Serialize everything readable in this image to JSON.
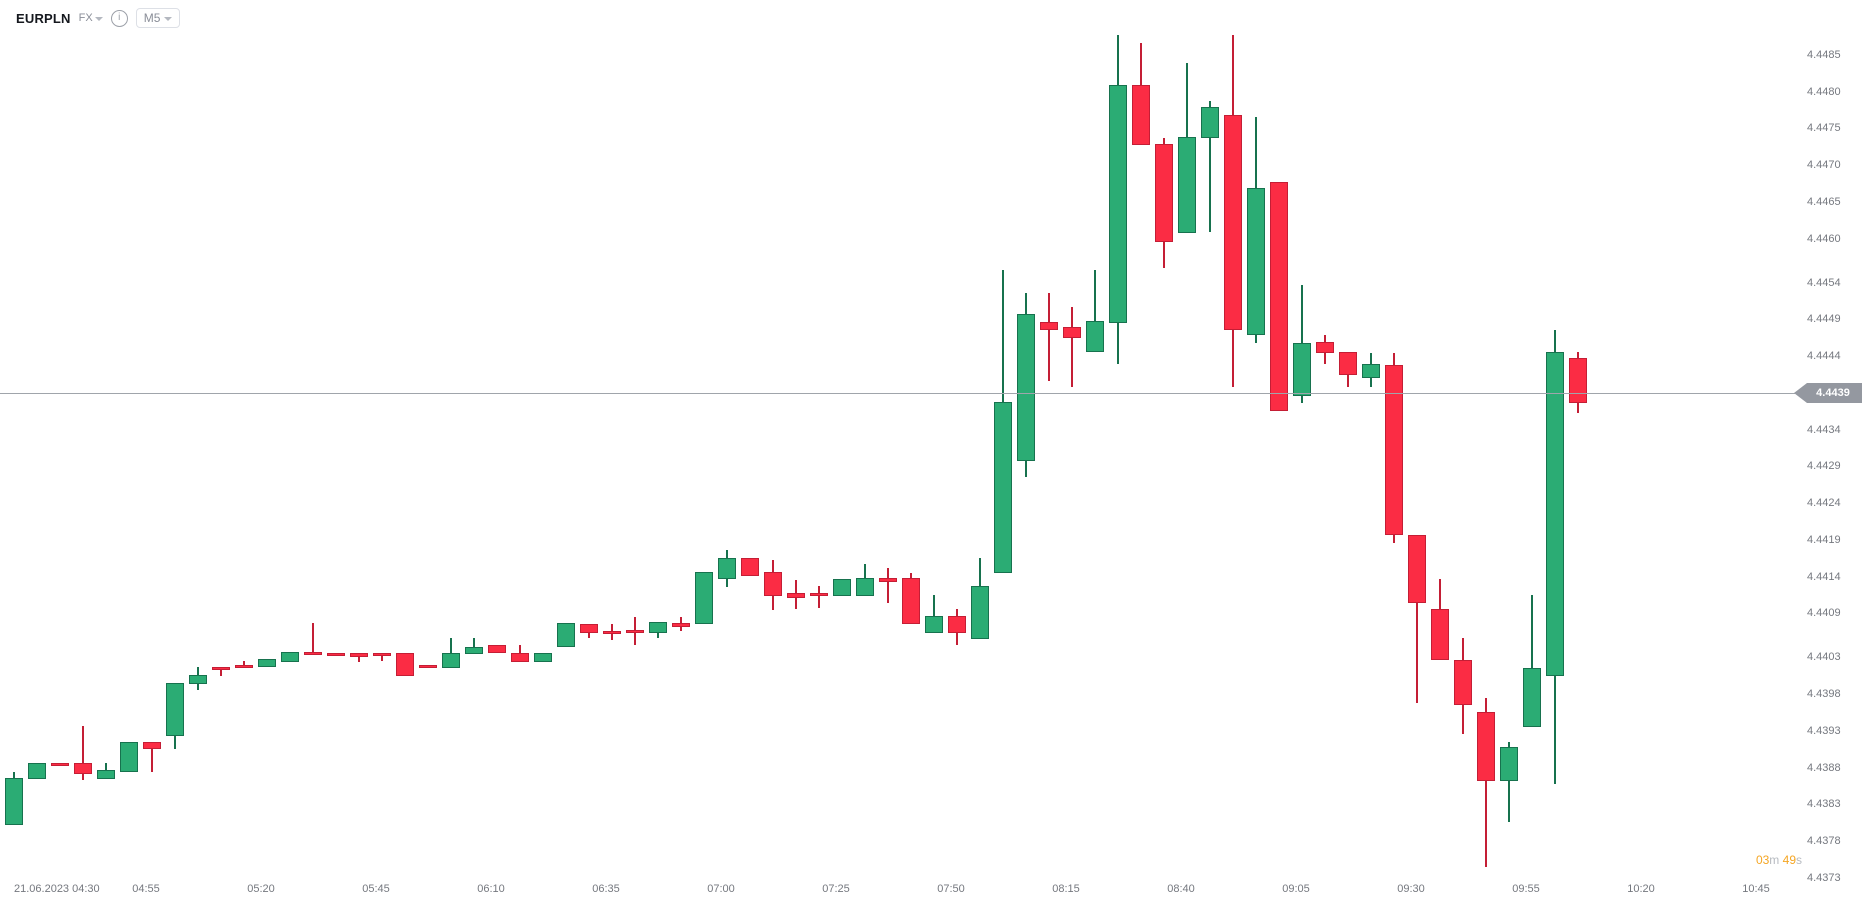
{
  "header": {
    "symbol": "EURPLN",
    "market": "FX",
    "timeframe": "M5",
    "info_glyph": "i"
  },
  "countdown": {
    "minutes": "03",
    "minutes_unit": "m",
    "seconds": "49",
    "seconds_unit": "s"
  },
  "colors": {
    "up_fill": "#2BAC74",
    "up_border": "#17724E",
    "down_fill": "#FB2C44",
    "down_border": "#C41E35",
    "price_line": "#A0A5AB",
    "badge_bg": "#9498A0",
    "axis_text": "#75787F",
    "countdown_accent": "#F5A623"
  },
  "chart_data": {
    "type": "candlestick",
    "title": "EURPLN",
    "interval": "M5",
    "date": "21.06.2023",
    "current_price": 4.4439,
    "current_price_label": "4.4439",
    "ylim": [
      4.4373,
      4.4485
    ],
    "grid": "off",
    "price_axis_labels": [
      "4.4485",
      "4.4480",
      "4.4475",
      "4.4470",
      "4.4465",
      "4.4460",
      "4.4454",
      "4.4449",
      "4.4444",
      "4.4434",
      "4.4429",
      "4.4424",
      "4.4419",
      "4.4414",
      "4.4409",
      "4.4403",
      "4.4398",
      "4.4393",
      "4.4388",
      "4.4383",
      "4.4378",
      "4.4373"
    ],
    "time_axis_labels": [
      "21.06.2023 04:30",
      "04:55",
      "05:20",
      "05:45",
      "06:10",
      "06:35",
      "07:00",
      "07:25",
      "07:50",
      "08:15",
      "08:40",
      "09:05",
      "09:30",
      "09:55",
      "10:20",
      "10:45"
    ],
    "candles": [
      [
        "04:25",
        4.43802,
        4.43874,
        4.43802,
        4.43866
      ],
      [
        "04:30",
        4.43864,
        4.43886,
        4.43864,
        4.43886
      ],
      [
        "04:35",
        4.43886,
        4.43886,
        4.43882,
        4.43882
      ],
      [
        "04:40",
        4.43886,
        4.43937,
        4.43863,
        4.43871
      ],
      [
        "04:45",
        4.43864,
        4.43886,
        4.43864,
        4.43877
      ],
      [
        "04:50",
        4.43874,
        4.43915,
        4.43874,
        4.43915
      ],
      [
        "04:55",
        4.43915,
        4.43915,
        4.43874,
        4.43905
      ],
      [
        "05:00",
        4.43923,
        4.43995,
        4.43905,
        4.43995
      ],
      [
        "05:05",
        4.43994,
        4.44017,
        4.43986,
        4.44006
      ],
      [
        "05:10",
        4.44017,
        4.44017,
        4.44005,
        4.44013
      ],
      [
        "05:15",
        4.44019,
        4.44025,
        4.44015,
        4.44015
      ],
      [
        "05:20",
        4.44017,
        4.44028,
        4.44017,
        4.44028
      ],
      [
        "05:25",
        4.44024,
        4.44037,
        4.44024,
        4.44037
      ],
      [
        "05:30",
        4.44037,
        4.44077,
        4.44033,
        4.44033
      ],
      [
        "05:35",
        4.44036,
        4.44036,
        4.44033,
        4.44033
      ],
      [
        "05:40",
        4.44036,
        4.44036,
        4.44024,
        4.44031
      ],
      [
        "05:45",
        4.44036,
        4.44036,
        4.44025,
        4.44032
      ],
      [
        "05:50",
        4.44036,
        4.44036,
        4.44004,
        4.44004
      ],
      [
        "05:55",
        4.44019,
        4.44019,
        4.44015,
        4.44015
      ],
      [
        "06:00",
        4.44016,
        4.44057,
        4.44016,
        4.44036
      ],
      [
        "06:05",
        4.44035,
        4.44057,
        4.44035,
        4.44044
      ],
      [
        "06:10",
        4.44047,
        4.44047,
        4.44036,
        4.44036
      ],
      [
        "06:15",
        4.44036,
        4.44047,
        4.44024,
        4.44024
      ],
      [
        "06:20",
        4.44024,
        4.44036,
        4.44024,
        4.44036
      ],
      [
        "06:25",
        4.44044,
        4.44077,
        4.44044,
        4.44077
      ],
      [
        "06:30",
        4.44075,
        4.44075,
        4.44057,
        4.44063
      ],
      [
        "06:35",
        4.44066,
        4.44075,
        4.44054,
        4.44062
      ],
      [
        "06:40",
        4.44067,
        4.44085,
        4.44047,
        4.44063
      ],
      [
        "06:45",
        4.44063,
        4.44078,
        4.44057,
        4.44078
      ],
      [
        "06:50",
        4.44077,
        4.44085,
        4.44066,
        4.44072
      ],
      [
        "06:55",
        4.44075,
        4.44146,
        4.44075,
        4.44146
      ],
      [
        "07:00",
        4.44137,
        4.44176,
        4.44126,
        4.44165
      ],
      [
        "07:05",
        4.44165,
        4.44165,
        4.44141,
        4.44141
      ],
      [
        "07:10",
        4.44146,
        4.44163,
        4.44095,
        4.44113
      ],
      [
        "07:15",
        4.44117,
        4.44135,
        4.44096,
        4.44111
      ],
      [
        "07:20",
        4.44117,
        4.44127,
        4.44097,
        4.44113
      ],
      [
        "07:25",
        4.44113,
        4.44137,
        4.44113,
        4.44137
      ],
      [
        "07:30",
        4.44113,
        4.44157,
        4.44113,
        4.44138
      ],
      [
        "07:35",
        4.44138,
        4.44151,
        4.44104,
        4.44133
      ],
      [
        "07:40",
        4.44138,
        4.44145,
        4.44075,
        4.44075
      ],
      [
        "07:45",
        4.44063,
        4.44115,
        4.44063,
        4.44086
      ],
      [
        "07:50",
        4.44086,
        4.44096,
        4.44047,
        4.44063
      ],
      [
        "07:55",
        4.44055,
        4.44165,
        4.44055,
        4.44127
      ],
      [
        "08:00",
        4.44145,
        4.44557,
        4.44145,
        4.44377
      ],
      [
        "08:05",
        4.44297,
        4.44526,
        4.44275,
        4.44497
      ],
      [
        "08:10",
        4.44486,
        4.44526,
        4.44406,
        4.44476
      ],
      [
        "08:15",
        4.4448,
        4.44507,
        4.44398,
        4.44465
      ],
      [
        "08:20",
        4.44446,
        4.44557,
        4.44446,
        4.44488
      ],
      [
        "08:25",
        4.44485,
        4.44877,
        4.44429,
        4.44809
      ],
      [
        "08:30",
        4.44809,
        4.44866,
        4.44727,
        4.44727
      ],
      [
        "08:35",
        4.44729,
        4.44737,
        4.4456,
        4.44595
      ],
      [
        "08:40",
        4.44608,
        4.44839,
        4.44608,
        4.44738
      ],
      [
        "08:45",
        4.44737,
        4.44787,
        4.44609,
        4.44779
      ],
      [
        "08:50",
        4.44768,
        4.44877,
        4.44398,
        4.44476
      ],
      [
        "08:55",
        4.44469,
        4.44766,
        4.44458,
        4.44669
      ],
      [
        "09:00",
        4.44677,
        4.44677,
        4.44365,
        4.44365
      ],
      [
        "09:05",
        4.44386,
        4.44537,
        4.44376,
        4.44458
      ],
      [
        "09:10",
        4.44459,
        4.44469,
        4.44429,
        4.44444
      ],
      [
        "09:15",
        4.44446,
        4.44446,
        4.44398,
        4.44414
      ],
      [
        "09:20",
        4.4441,
        4.44444,
        4.44398,
        4.44429
      ],
      [
        "09:25",
        4.44428,
        4.44444,
        4.44186,
        4.44197
      ],
      [
        "09:30",
        4.44196,
        4.44196,
        4.43968,
        4.44104
      ],
      [
        "09:35",
        4.44096,
        4.44137,
        4.44027,
        4.44027
      ],
      [
        "09:40",
        4.44027,
        4.44057,
        4.43926,
        4.43965
      ],
      [
        "09:45",
        4.43956,
        4.43975,
        4.43745,
        4.43862
      ],
      [
        "09:50",
        4.43862,
        4.43915,
        4.43806,
        4.43908
      ],
      [
        "09:55",
        4.43935,
        4.44115,
        4.43935,
        4.44016
      ],
      [
        "10:00",
        4.44005,
        4.44476,
        4.43857,
        4.44446
      ],
      [
        "10:05",
        4.44438,
        4.44446,
        4.44362,
        4.44376
      ]
    ]
  }
}
